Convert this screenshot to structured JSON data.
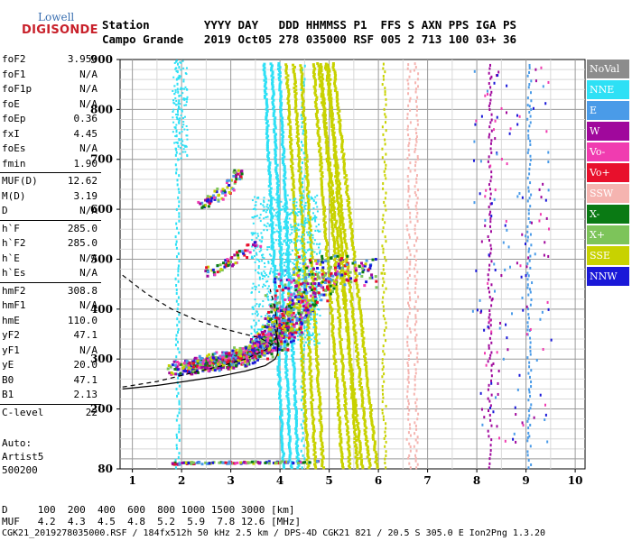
{
  "logo": {
    "line1": "Lowell",
    "line2": "DIGISONDE"
  },
  "header": {
    "row1": "Station        YYYY DAY   DDD HHMMSS P1  FFS S AXN PPS IGA PS",
    "row2": "Campo Grande   2019 Oct05 278 035000 RSF 005 2 713 100 03+ 36"
  },
  "params": [
    {
      "name": "foF2",
      "value": "3.950"
    },
    {
      "name": "foF1",
      "value": "N/A"
    },
    {
      "name": "foF1p",
      "value": "N/A"
    },
    {
      "name": "foE",
      "value": "N/A"
    },
    {
      "name": "foEp",
      "value": "0.36"
    },
    {
      "name": "fxI",
      "value": "4.45"
    },
    {
      "name": "foEs",
      "value": "N/A"
    },
    {
      "name": "fmin",
      "value": "1.90"
    },
    {
      "name": "MUF(D)",
      "value": "12.62"
    },
    {
      "name": "M(D)",
      "value": "3.19"
    },
    {
      "name": "D",
      "value": "N/A"
    },
    {
      "name": "h`F",
      "value": "285.0"
    },
    {
      "name": "h`F2",
      "value": "285.0"
    },
    {
      "name": "h`E",
      "value": "N/A"
    },
    {
      "name": "h`Es",
      "value": "N/A"
    },
    {
      "name": "hmF2",
      "value": "308.8"
    },
    {
      "name": "hmF1",
      "value": "N/A"
    },
    {
      "name": "hmE",
      "value": "110.0"
    },
    {
      "name": "yF2",
      "value": "47.1"
    },
    {
      "name": "yF1",
      "value": "N/A"
    },
    {
      "name": "yE",
      "value": "20.0"
    },
    {
      "name": "B0",
      "value": "47.1"
    },
    {
      "name": "B1",
      "value": "2.13"
    },
    {
      "name": "C-level",
      "value": "22"
    }
  ],
  "auto": {
    "line1": "Auto:",
    "line2": "Artist5",
    "line3": "500200"
  },
  "legend": [
    {
      "label": "NoVal",
      "color": "#8c8c8c"
    },
    {
      "label": "NNE",
      "color": "#2ee0f5"
    },
    {
      "label": "E",
      "color": "#4a9be8"
    },
    {
      "label": "W",
      "color": "#a0089c"
    },
    {
      "label": "Vo-",
      "color": "#f03cb0"
    },
    {
      "label": "Vo+",
      "color": "#e8102c"
    },
    {
      "label": "SSW",
      "color": "#f5b4b0"
    },
    {
      "label": "X-",
      "color": "#0a7a14"
    },
    {
      "label": "X+",
      "color": "#7dc45a"
    },
    {
      "label": "SSE",
      "color": "#c8d200"
    },
    {
      "label": "NNW",
      "color": "#1a18d8"
    }
  ],
  "bottom": {
    "row1": "D     100  200  400  600  800 1000 1500 3000 [km]",
    "row2": "MUF   4.2  4.3  4.5  4.8  5.2  5.9  7.8 12.6 [MHz]"
  },
  "footer": "CGK21_2019278035000.RSF / 184fx512h 50 kHz 2.5 km / DPS-4D CGK21 821 / 20.5 S 305.0 E Ion2Png 1.3.20",
  "chart_data": {
    "type": "scatter",
    "title": "",
    "xlabel": "",
    "ylabel": "",
    "xlim": [
      0.75,
      10.2
    ],
    "ylim": [
      80,
      900
    ],
    "x_ticks": [
      1,
      2,
      3,
      4,
      5,
      6,
      7,
      8,
      9,
      10
    ],
    "y_ticks": [
      80,
      200,
      300,
      400,
      500,
      600,
      700,
      800,
      900
    ],
    "grid": true,
    "legend_placement": "right",
    "profile_solid": [
      [
        0.8,
        240
      ],
      [
        1.5,
        247
      ],
      [
        2.2,
        257
      ],
      [
        2.8,
        266
      ],
      [
        3.3,
        276
      ],
      [
        3.7,
        287
      ],
      [
        3.9,
        300
      ],
      [
        3.95,
        310
      ],
      [
        3.96,
        330
      ],
      [
        3.93,
        350
      ],
      [
        3.9,
        360
      ]
    ],
    "profile_dashed": [
      [
        0.8,
        468
      ],
      [
        1.3,
        430
      ],
      [
        1.8,
        400
      ],
      [
        2.3,
        378
      ],
      [
        2.8,
        362
      ],
      [
        3.2,
        352
      ],
      [
        3.6,
        342
      ],
      [
        3.85,
        328
      ]
    ],
    "lower_dashed": [
      [
        0.8,
        244
      ],
      [
        1.5,
        255
      ],
      [
        2.2,
        272
      ],
      [
        2.8,
        286
      ],
      [
        3.3,
        300
      ],
      [
        3.7,
        318
      ],
      [
        3.9,
        335
      ],
      [
        3.95,
        360
      ],
      [
        3.9,
        400
      ],
      [
        3.8,
        440
      ]
    ],
    "trace_o": [
      [
        1.9,
        284
      ],
      [
        2.2,
        288
      ],
      [
        2.5,
        292
      ],
      [
        2.8,
        296
      ],
      [
        3.1,
        302
      ],
      [
        3.3,
        310
      ],
      [
        3.5,
        322
      ],
      [
        3.7,
        338
      ],
      [
        3.85,
        355
      ],
      [
        3.95,
        380
      ],
      [
        4.05,
        410
      ]
    ],
    "trace_x": [
      [
        2.3,
        290
      ],
      [
        2.7,
        296
      ],
      [
        3.0,
        302
      ],
      [
        3.3,
        310
      ],
      [
        3.6,
        322
      ],
      [
        3.9,
        338
      ],
      [
        4.1,
        358
      ],
      [
        4.25,
        380
      ],
      [
        4.4,
        405
      ],
      [
        4.45,
        430
      ]
    ],
    "trace_spread": [
      [
        4.2,
        430
      ],
      [
        4.4,
        450
      ],
      [
        4.6,
        460
      ],
      [
        4.8,
        470
      ],
      [
        5.0,
        480
      ],
      [
        5.2,
        480
      ],
      [
        5.5,
        475
      ]
    ],
    "trace_2hop": [
      [
        2.4,
        610
      ],
      [
        2.7,
        630
      ],
      [
        3.0,
        660
      ],
      [
        3.2,
        680
      ]
    ],
    "trace_multi": [
      [
        2.4,
        470
      ],
      [
        2.8,
        490
      ],
      [
        3.2,
        510
      ],
      [
        3.5,
        540
      ]
    ],
    "low_layer": [
      [
        1.8,
        93
      ],
      [
        2.2,
        94
      ],
      [
        2.8,
        95
      ],
      [
        3.4,
        95
      ],
      [
        4.0,
        96
      ],
      [
        4.8,
        96
      ]
    ],
    "interference_bands": [
      {
        "x0": 4.35,
        "x1": 4.8,
        "color": "#c8d200"
      },
      {
        "x0": 4.9,
        "x1": 5.5,
        "color": "#c8d200"
      },
      {
        "x0": 5.0,
        "x1": 5.9,
        "color": "#c8d200"
      },
      {
        "x0": 3.9,
        "x1": 4.3,
        "color": "#2ee0f5"
      }
    ],
    "vertical_lines": [
      {
        "x": 1.9,
        "color": "#2ee0f5"
      },
      {
        "x": 4.45,
        "color": "#2ee0f5"
      },
      {
        "x": 6.1,
        "color": "#c8d200"
      },
      {
        "x": 6.6,
        "color": "#f5b4b0"
      },
      {
        "x": 6.75,
        "color": "#f5b4b0"
      },
      {
        "x": 8.25,
        "color": "#a0089c"
      },
      {
        "x": 9.05,
        "color": "#4a9be8"
      }
    ]
  }
}
